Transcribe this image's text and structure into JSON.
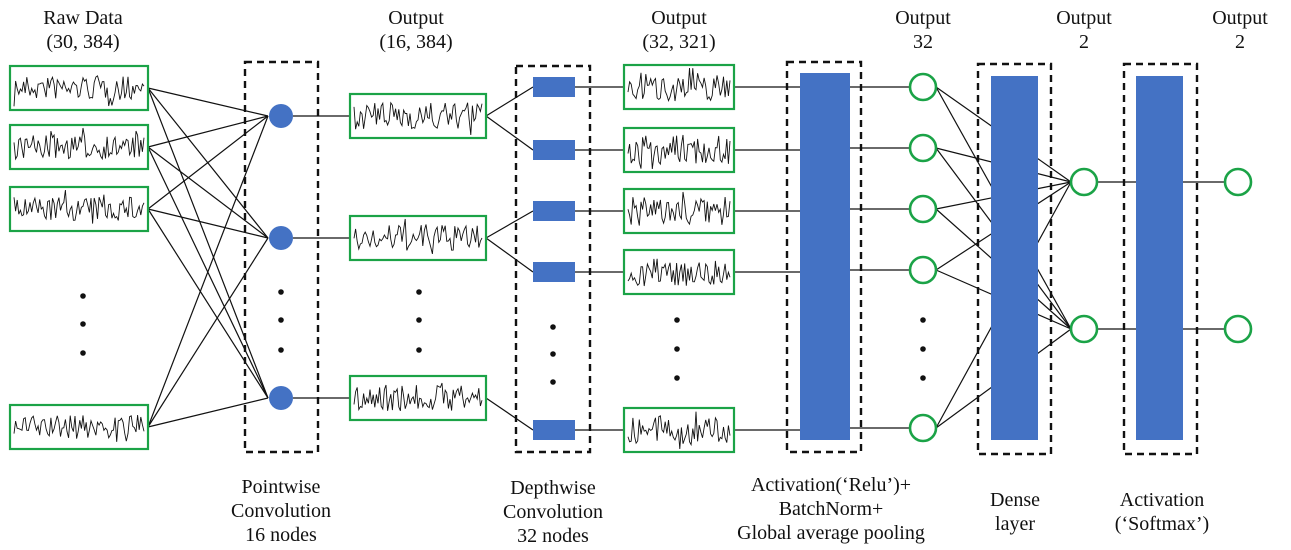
{
  "colors": {
    "node_fill": "#4472C4",
    "box_stroke": "#1BA347",
    "line": "#111111",
    "dashed": "#111111",
    "text": "#111111"
  },
  "labels": {
    "raw_data": {
      "line1": "Raw Data",
      "line2": "(30, 384)"
    },
    "output_pointwise": {
      "line1": "Output",
      "line2": "(16, 384)"
    },
    "output_depthwise": {
      "line1": "Output",
      "line2": "(32, 321)"
    },
    "output_pooling": {
      "line1": "Output",
      "line2": "32"
    },
    "output_dense": {
      "line1": "Output",
      "line2": "2"
    },
    "output_softmax": {
      "line1": "Output",
      "line2": "2"
    },
    "pointwise": {
      "line1": "Pointwise",
      "line2": "Convolution",
      "line3": "16 nodes"
    },
    "depthwise": {
      "line1": "Depthwise",
      "line2": "Convolution",
      "line3": "32 nodes"
    },
    "activation_relu": {
      "line1": "Activation(‘Relu’)+",
      "line2": "BatchNorm+",
      "line3": "Global average pooling"
    },
    "dense": {
      "line1": "Dense",
      "line2": "layer"
    },
    "activation_softmax": {
      "line1": "Activation",
      "line2": "(‘Softmax’)"
    }
  },
  "layers": {
    "raw_data": {
      "visible_signal_boxes": 4
    },
    "pointwise": {
      "visible_nodes": 3,
      "node_shape": "filled-circle"
    },
    "pointwise_output": {
      "visible_signal_boxes": 3
    },
    "depthwise": {
      "visible_nodes": 5,
      "node_shape": "filled-rectangle"
    },
    "depthwise_output": {
      "visible_signal_boxes": 5
    },
    "pooling_output": {
      "visible_nodes": 5,
      "node_shape": "hollow-circle"
    },
    "dense_output": {
      "visible_nodes": 2,
      "node_shape": "hollow-circle"
    },
    "softmax_output": {
      "visible_nodes": 2,
      "node_shape": "hollow-circle"
    }
  }
}
